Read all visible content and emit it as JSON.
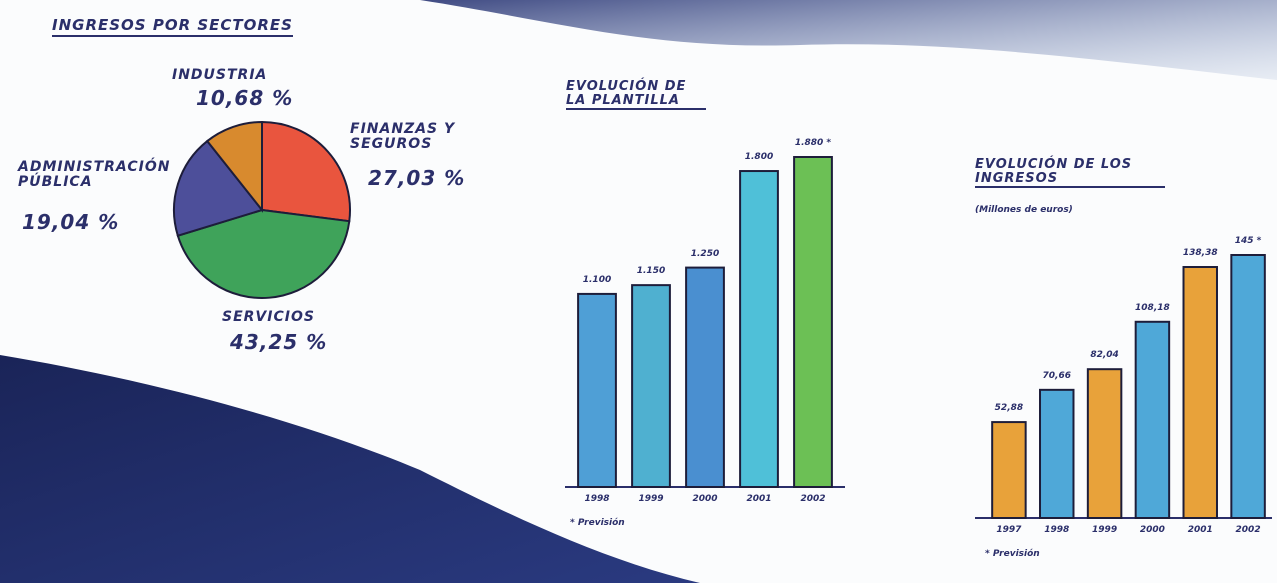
{
  "chart_data": [
    {
      "type": "pie",
      "title": "INGRESOS POR SECTORES",
      "categories": [
        "FINANZAS Y SEGUROS",
        "SERVICIOS",
        "ADMINISTRACIÓN PÚBLICA",
        "INDUSTRIA"
      ],
      "values": [
        27.03,
        43.25,
        19.04,
        10.68
      ],
      "value_labels": [
        "27,03 %",
        "43,25 %",
        "19,04 %",
        "10,68 %"
      ],
      "colors": [
        "#e9553e",
        "#3fa35a",
        "#4d4f9a",
        "#d88a2e"
      ]
    },
    {
      "type": "bar",
      "title": "EVOLUCIÓN DE LA PLANTILLA",
      "categories": [
        "1998",
        "1999",
        "2000",
        "2001",
        "2002"
      ],
      "values": [
        1100,
        1150,
        1250,
        1800,
        1880
      ],
      "value_labels": [
        "1.100",
        "1.150",
        "1.250",
        "1.800",
        "1.880 *"
      ],
      "colors": [
        "#4f9fd6",
        "#4fb0d0",
        "#4a8fd0",
        "#4fc0d8",
        "#6cc055"
      ],
      "note": "* Previsión"
    },
    {
      "type": "bar",
      "title": "EVOLUCIÓN DE LOS INGRESOS",
      "subtitle": "(Millones de euros)",
      "categories": [
        "1997",
        "1998",
        "1999",
        "2000",
        "2001",
        "2002"
      ],
      "values": [
        52.88,
        70.66,
        82.04,
        108.18,
        138.38,
        145
      ],
      "value_labels": [
        "52,88",
        "70,66",
        "82,04",
        "108,18",
        "138,38",
        "145 *"
      ],
      "colors": [
        "#e8a23a",
        "#4fa8d8",
        "#e8a23a",
        "#4fa8d8",
        "#e8a23a",
        "#4fa8d8"
      ],
      "note": "* Previsión"
    }
  ]
}
